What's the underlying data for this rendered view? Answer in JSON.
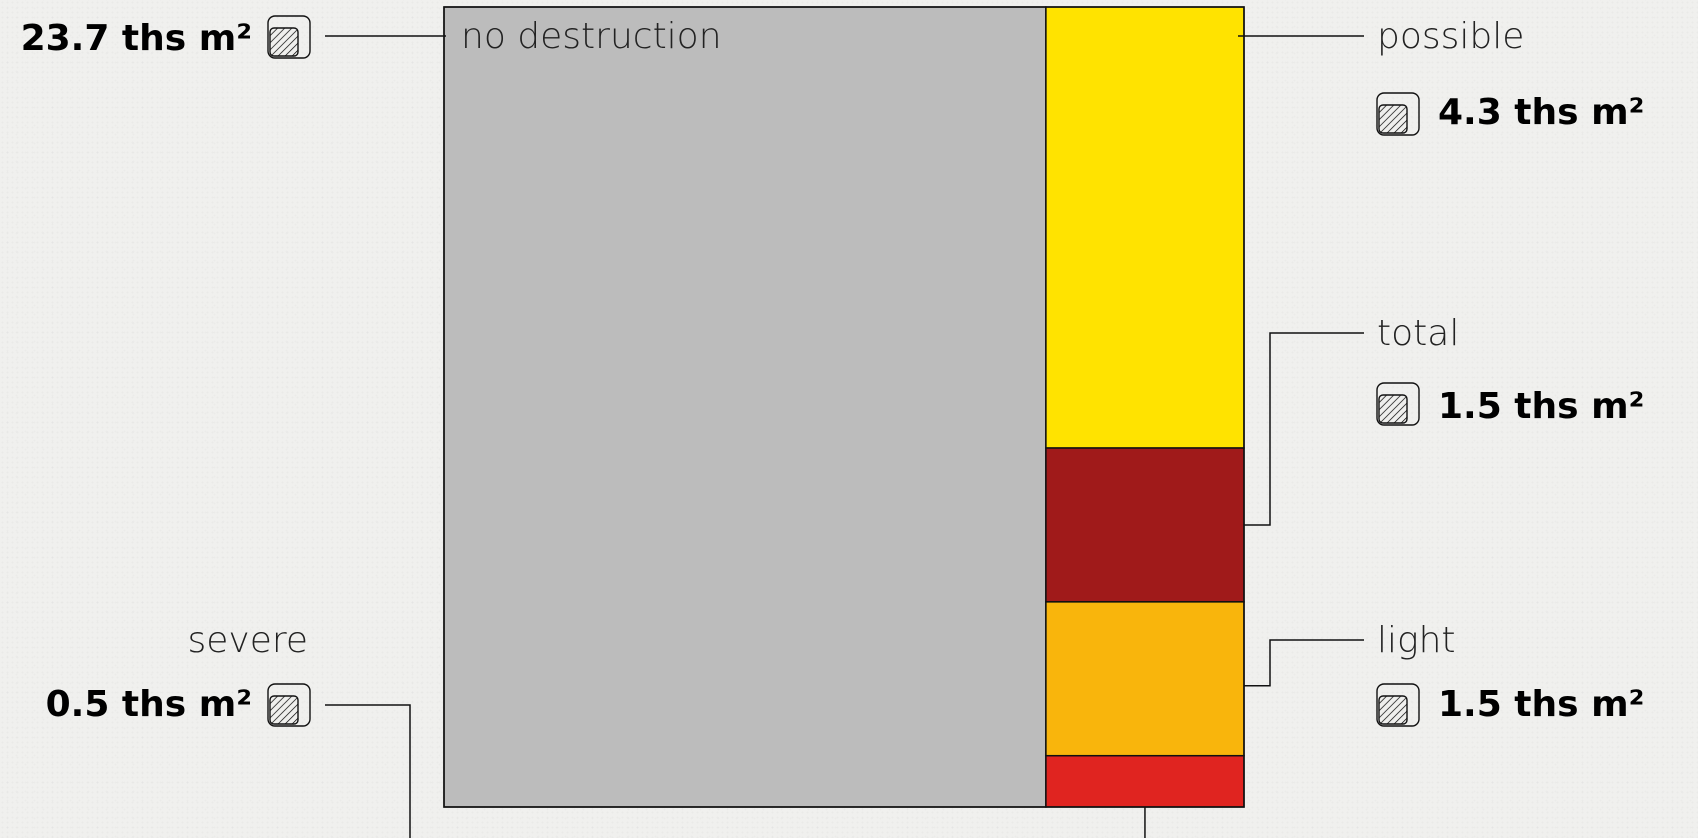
{
  "chart_data": {
    "type": "treemap",
    "title": "",
    "unit": "ths m²",
    "categories": [
      {
        "key": "no_destruction",
        "name": "no destruction",
        "value": 23.7,
        "value_label": "23.7 ths m²",
        "color": "#bcbcbc"
      },
      {
        "key": "possible",
        "name": "possible",
        "value": 4.3,
        "value_label": "4.3 ths m²",
        "color": "#ffe300"
      },
      {
        "key": "total",
        "name": "total",
        "value": 1.5,
        "value_label": "1.5 ths m²",
        "color": "#a01a1a"
      },
      {
        "key": "light",
        "name": "light",
        "value": 1.5,
        "value_label": "1.5 ths m²",
        "color": "#f9b50c"
      },
      {
        "key": "severe",
        "name": "severe",
        "value": 0.5,
        "value_label": "0.5 ths m²",
        "color": "#e02420"
      }
    ],
    "area_icon": "area-hatched-icon"
  }
}
